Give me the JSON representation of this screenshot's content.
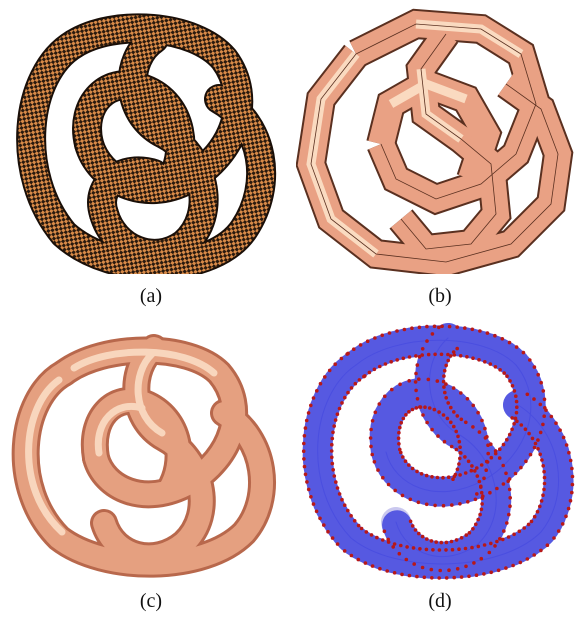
{
  "figure": {
    "panels": [
      {
        "id": "a",
        "caption": "(a)"
      },
      {
        "id": "b",
        "caption": "(b)"
      },
      {
        "id": "c",
        "caption": "(c)"
      },
      {
        "id": "d",
        "caption": "(d)"
      }
    ]
  },
  "colors": {
    "checker_dark": "#2a1a0e",
    "checker_light": "#d88a48",
    "poly_fill": "#e9a184",
    "poly_light": "#fde5cb",
    "poly_edge": "#5a3020",
    "smooth_base": "#e5a080",
    "smooth_highlight": "#fbdcc4",
    "smooth_shadow": "#b8684c",
    "mesh_edge": "#4a4ee0",
    "mesh_vertex": "#b81818"
  }
}
